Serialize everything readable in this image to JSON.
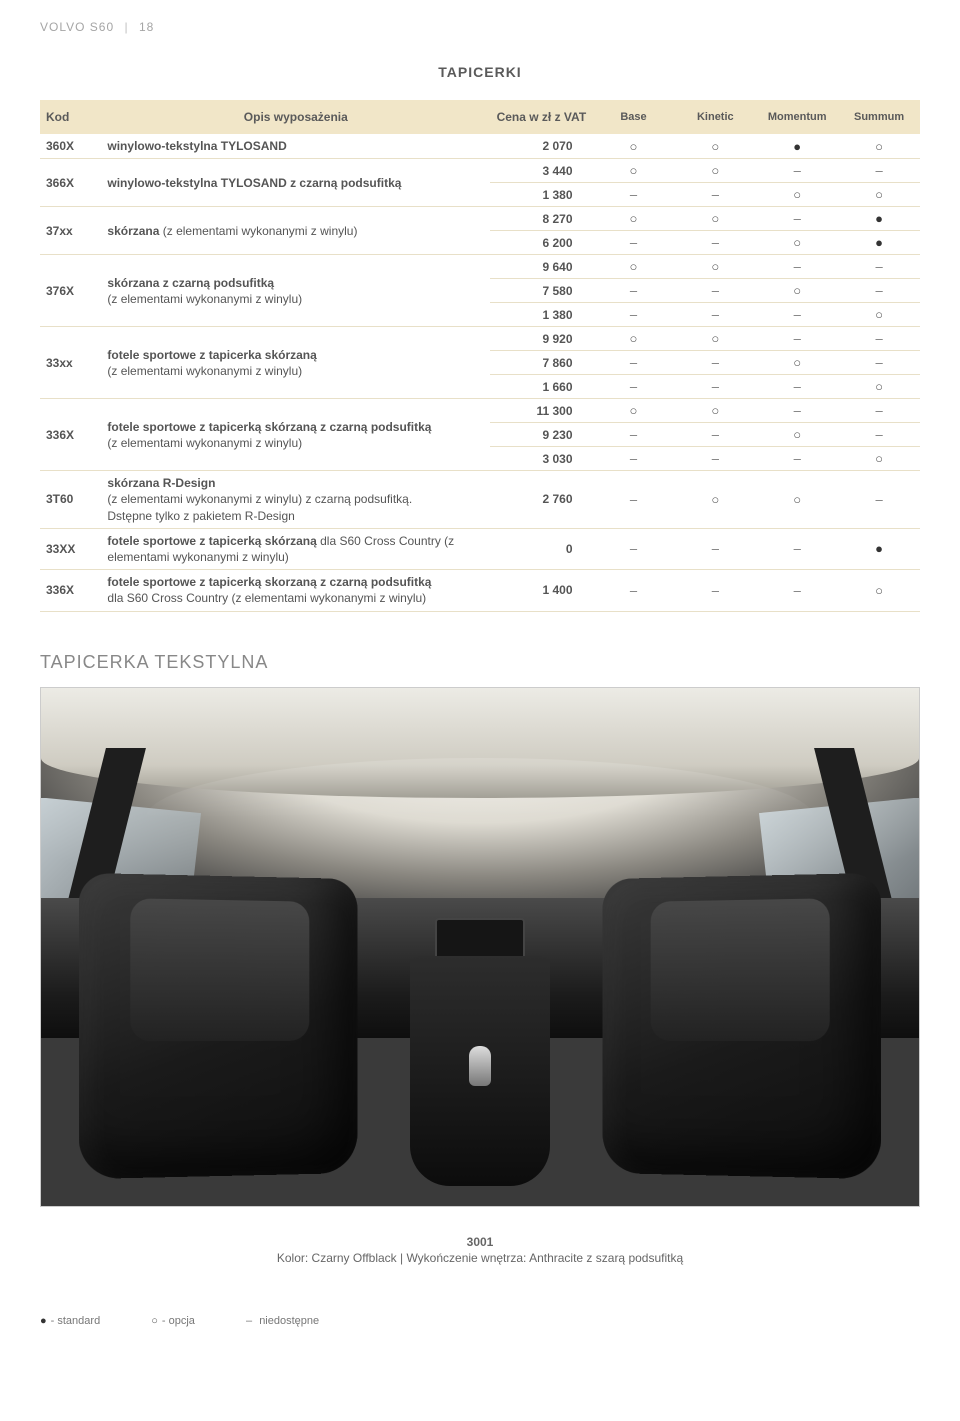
{
  "header": {
    "model": "VOLVO S60",
    "page": "18"
  },
  "section_title": "TAPICERKI",
  "table": {
    "headers": {
      "kod": "Kod",
      "opis": "Opis wyposażenia",
      "cena": "Cena w zł z VAT",
      "trims": [
        "Base",
        "Kinetic",
        "Momentum",
        "Summum"
      ]
    },
    "rows": [
      {
        "kod": "360X",
        "opis_main": "winylowo-tekstylna TYLOSAND",
        "opis_sub": "",
        "lines": [
          {
            "price": "2 070",
            "vals": [
              "O",
              "O",
              "F",
              "O"
            ]
          }
        ]
      },
      {
        "kod": "366X",
        "opis_main": "winylowo-tekstylna TYLOSAND z czarną podsufitką",
        "opis_sub": "",
        "lines": [
          {
            "price": "3 440",
            "vals": [
              "O",
              "O",
              "-",
              "-"
            ]
          },
          {
            "price": "1 380",
            "vals": [
              "-",
              "-",
              "O",
              "O"
            ]
          }
        ]
      },
      {
        "kod": "37xx",
        "opis_main": "skórzana",
        "opis_sub": " (z elementami wykonanymi z winylu)",
        "lines": [
          {
            "price": "8 270",
            "vals": [
              "O",
              "O",
              "-",
              "F"
            ]
          },
          {
            "price": "6 200",
            "vals": [
              "-",
              "-",
              "O",
              "F"
            ]
          }
        ]
      },
      {
        "kod": "376X",
        "opis_main": "skórzana z czarną podsufitką",
        "opis_sub": "(z elementami wykonanymi z winylu)",
        "lines": [
          {
            "price": "9 640",
            "vals": [
              "O",
              "O",
              "-",
              "-"
            ]
          },
          {
            "price": "7 580",
            "vals": [
              "-",
              "-",
              "O",
              "-"
            ]
          },
          {
            "price": "1 380",
            "vals": [
              "-",
              "-",
              "-",
              "O"
            ]
          }
        ]
      },
      {
        "kod": "33xx",
        "opis_main": "fotele sportowe z tapicerka skórzaną",
        "opis_sub": "(z elementami wykonanymi z winylu)",
        "lines": [
          {
            "price": "9 920",
            "vals": [
              "O",
              "O",
              "-",
              "-"
            ]
          },
          {
            "price": "7 860",
            "vals": [
              "-",
              "-",
              "O",
              "-"
            ]
          },
          {
            "price": "1 660",
            "vals": [
              "-",
              "-",
              "-",
              "O"
            ]
          }
        ]
      },
      {
        "kod": "336X",
        "opis_main": "fotele sportowe z tapicerką skórzaną z czarną podsufitką",
        "opis_sub": "(z elementami wykonanymi z winylu)",
        "lines": [
          {
            "price": "11 300",
            "vals": [
              "O",
              "O",
              "-",
              "-"
            ]
          },
          {
            "price": "9 230",
            "vals": [
              "-",
              "-",
              "O",
              "-"
            ]
          },
          {
            "price": "3 030",
            "vals": [
              "-",
              "-",
              "-",
              "O"
            ]
          }
        ]
      },
      {
        "kod": "3T60",
        "opis_main": "skórzana R-Design",
        "opis_sub": "(z elementami wykonanymi z winylu) z czarną podsufitką.\nDstępne tylko z pakietem R-Design",
        "lines": [
          {
            "price": "2 760",
            "vals": [
              "-",
              "O",
              "O",
              "-"
            ]
          }
        ]
      },
      {
        "kod": "33XX",
        "opis_main": "fotele sportowe z tapicerką skórzaną",
        "opis_sub": " dla S60 Cross Country (z elementami wykonanymi z winylu)",
        "lines": [
          {
            "price": "0",
            "vals": [
              "-",
              "-",
              "-",
              "F"
            ]
          }
        ]
      },
      {
        "kod": "336X",
        "opis_main": "fotele sportowe z tapicerką skorzaną z czarną podsufitką",
        "opis_sub": "dla S60 Cross Country (z elementami wykonanymi z winylu)",
        "lines": [
          {
            "price": "1 400",
            "vals": [
              "-",
              "-",
              "-",
              "O"
            ]
          }
        ]
      }
    ],
    "symbol_map": {
      "O": "circle-open",
      "F": "circle-filled",
      "-": "dash"
    },
    "colors": {
      "header_bg": "#f1e6c8",
      "row_border": "#e8e0c8",
      "group_border": "#d8ceac",
      "text": "#555555"
    }
  },
  "chart_name": "TAPICERKA TEKSTYLNA",
  "figure": {
    "code": "3001",
    "caption": "Kolor: Czarny Offblack | Wykończenie wnętrza: Anthracite z szarą podsufitką",
    "description": "Car interior photo — front seats, dashboard, panoramic roofliner; dark anthracite leather/textile seats with light grey headliner",
    "palette": {
      "headliner": "#ecebe5",
      "seat_dark": "#1a1a1a",
      "seat_mid": "#3b3b3b",
      "dashboard": "#2a2a2a",
      "window_glass": "#c8d0d4"
    },
    "aspect_w": 880,
    "aspect_h": 520
  },
  "legend": {
    "standard": "- standard",
    "option": "- opcja",
    "na": "niedostępne"
  }
}
